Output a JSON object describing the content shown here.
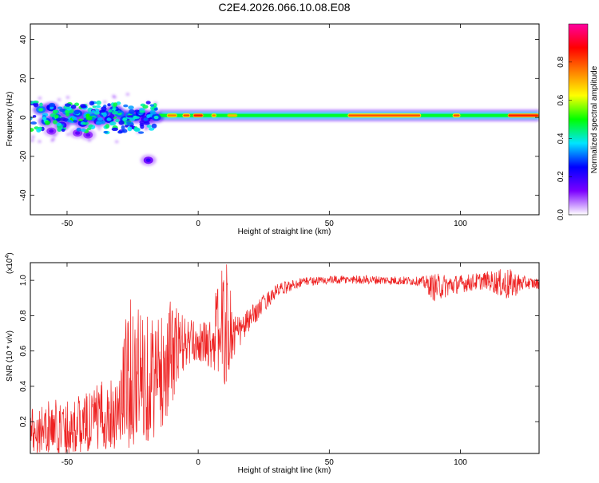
{
  "title": "C2E4.2026.066.10.08.E08",
  "chart_data": [
    {
      "type": "heatmap",
      "title": "C2E4.2026.066.10.08.E08",
      "xlabel": "Height of straight line (km)",
      "ylabel": "Frequency (Hz)",
      "xlim": [
        -64,
        130
      ],
      "ylim": [
        -50,
        48
      ],
      "xticks": [
        -50,
        0,
        50,
        100
      ],
      "yticks": [
        -40,
        -20,
        0,
        20,
        40
      ],
      "colorbar": {
        "label": "Normalized spectral amplitude",
        "range": [
          0,
          1
        ],
        "ticks": [
          0.0,
          0.2,
          0.4,
          0.6,
          0.8
        ],
        "tick_labels": [
          "0.0",
          "0.2",
          "0.4",
          "0.6",
          "0.8"
        ],
        "stops": [
          "#ffffff",
          "#7b00ff",
          "#0000ff",
          "#00e5ff",
          "#00ff00",
          "#ffff00",
          "#ff8000",
          "#ff0000",
          "#ff00a0"
        ]
      },
      "ridge_frequency_hz": 1.0,
      "blobs": [
        {
          "x": -60,
          "y": 4,
          "v": 0.45
        },
        {
          "x": -58,
          "y": -2,
          "v": 0.4
        },
        {
          "x": -56,
          "y": 5,
          "v": 0.35
        },
        {
          "x": -54,
          "y": 0,
          "v": 0.42
        },
        {
          "x": -52,
          "y": -4,
          "v": 0.3
        },
        {
          "x": -50,
          "y": 3,
          "v": 0.45
        },
        {
          "x": -48,
          "y": -1,
          "v": 0.5
        },
        {
          "x": -46,
          "y": 2,
          "v": 0.4
        },
        {
          "x": -44,
          "y": -3,
          "v": 0.35
        },
        {
          "x": -42,
          "y": 1,
          "v": 0.5
        },
        {
          "x": -40,
          "y": 0,
          "v": 0.45
        },
        {
          "x": -38,
          "y": -2,
          "v": 0.3
        },
        {
          "x": -36,
          "y": 2,
          "v": 0.4
        },
        {
          "x": -34,
          "y": -1,
          "v": 0.35
        },
        {
          "x": -32,
          "y": 4,
          "v": 0.4
        },
        {
          "x": -30,
          "y": 2,
          "v": 0.45
        },
        {
          "x": -28,
          "y": -1,
          "v": 0.4
        },
        {
          "x": -26,
          "y": 1,
          "v": 0.45
        },
        {
          "x": -24,
          "y": 0,
          "v": 0.4
        },
        {
          "x": -22,
          "y": 2,
          "v": 0.35
        },
        {
          "x": -20,
          "y": -1,
          "v": 0.3
        },
        {
          "x": -18,
          "y": 1,
          "v": 0.35
        },
        {
          "x": -16,
          "y": 0,
          "v": 0.4
        },
        {
          "x": -46,
          "y": -8,
          "v": 0.15
        },
        {
          "x": -42,
          "y": -9,
          "v": 0.15
        },
        {
          "x": -19,
          "y": -22,
          "v": 0.2
        },
        {
          "x": -56,
          "y": -7,
          "v": 0.15
        }
      ],
      "ridge_segments": [
        {
          "x0": -12,
          "x1": -8,
          "v": 0.75
        },
        {
          "x0": -6,
          "x1": -3,
          "v": 0.8
        },
        {
          "x0": -2,
          "x1": 2,
          "v": 0.85
        },
        {
          "x0": 5,
          "x1": 7,
          "v": 0.75
        },
        {
          "x0": 11,
          "x1": 15,
          "v": 0.7
        },
        {
          "x0": 57,
          "x1": 85,
          "v": 0.8
        },
        {
          "x0": 97,
          "x1": 100,
          "v": 0.8
        },
        {
          "x0": 118,
          "x1": 130,
          "v": 0.85
        }
      ]
    },
    {
      "type": "line",
      "xlabel": "Height of straight line (km)",
      "ylabel": "SNR (10 * v/v)",
      "ylabel_multiplier": "(x10",
      "ylabel_exponent": "4",
      "ylabel_multiplier_close": ")",
      "xlim": [
        -64,
        130
      ],
      "ylim": [
        0.02,
        1.1
      ],
      "xticks": [
        -50,
        0,
        50,
        100
      ],
      "yticks": [
        0.2,
        0.4,
        0.6,
        0.8,
        1.0
      ],
      "color": "#ee2222",
      "envelope": [
        {
          "x": -64,
          "lo": 0.02,
          "hi": 0.3
        },
        {
          "x": -45,
          "lo": 0.02,
          "hi": 0.35
        },
        {
          "x": -30,
          "lo": 0.05,
          "hi": 0.5
        },
        {
          "x": -27,
          "lo": 0.05,
          "hi": 0.9
        },
        {
          "x": -20,
          "lo": 0.08,
          "hi": 0.85
        },
        {
          "x": -15,
          "lo": 0.12,
          "hi": 0.8
        },
        {
          "x": -10,
          "lo": 0.3,
          "hi": 0.9
        },
        {
          "x": -5,
          "lo": 0.5,
          "hi": 0.8
        },
        {
          "x": 0,
          "lo": 0.55,
          "hi": 0.75
        },
        {
          "x": 5,
          "lo": 0.5,
          "hi": 0.8
        },
        {
          "x": 8,
          "lo": 0.45,
          "hi": 1.05
        },
        {
          "x": 11,
          "lo": 0.38,
          "hi": 1.1
        },
        {
          "x": 15,
          "lo": 0.6,
          "hi": 0.8
        },
        {
          "x": 20,
          "lo": 0.72,
          "hi": 0.85
        },
        {
          "x": 25,
          "lo": 0.82,
          "hi": 0.92
        },
        {
          "x": 30,
          "lo": 0.9,
          "hi": 0.98
        },
        {
          "x": 40,
          "lo": 0.97,
          "hi": 1.02
        },
        {
          "x": 60,
          "lo": 0.98,
          "hi": 1.03
        },
        {
          "x": 85,
          "lo": 0.97,
          "hi": 1.02
        },
        {
          "x": 90,
          "lo": 0.88,
          "hi": 1.04
        },
        {
          "x": 100,
          "lo": 0.93,
          "hi": 1.03
        },
        {
          "x": 110,
          "lo": 0.95,
          "hi": 1.05
        },
        {
          "x": 118,
          "lo": 0.88,
          "hi": 1.07
        },
        {
          "x": 125,
          "lo": 0.95,
          "hi": 1.02
        },
        {
          "x": 130,
          "lo": 0.95,
          "hi": 1.01
        }
      ]
    }
  ]
}
